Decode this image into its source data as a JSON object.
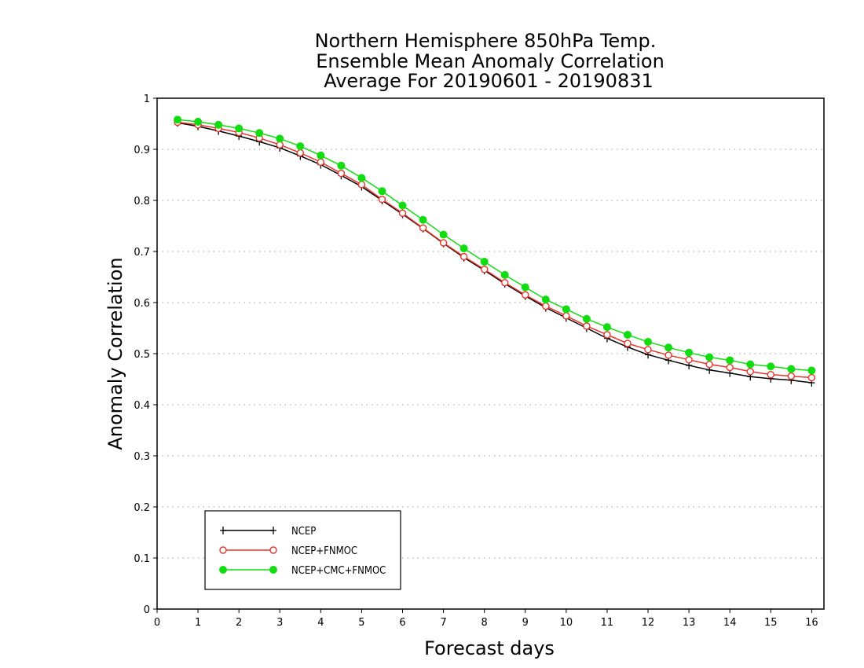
{
  "chart_data": {
    "type": "line",
    "title": [
      "Northern Hemisphere 850hPa Temp.",
      "Ensemble Mean Anomaly Correlation",
      "Average For 20190601 - 20190831"
    ],
    "xlabel": "Forecast days",
    "ylabel": "Anomaly Correlation",
    "xlim": [
      0,
      16.3
    ],
    "ylim": [
      0,
      1
    ],
    "xticks": [
      "0",
      "1",
      "2",
      "3",
      "4",
      "5",
      "6",
      "7",
      "8",
      "9",
      "10",
      "11",
      "12",
      "13",
      "14",
      "15",
      "16"
    ],
    "yticks": [
      "0",
      "0.1",
      "0.2",
      "0.3",
      "0.4",
      "0.5",
      "0.6",
      "0.7",
      "0.8",
      "0.9",
      "1"
    ],
    "grid": true,
    "legend_position": "bottom-left",
    "x": [
      0.5,
      1,
      1.5,
      2,
      2.5,
      3,
      3.5,
      4,
      4.5,
      5,
      5.5,
      6,
      6.5,
      7,
      7.5,
      8,
      8.5,
      9,
      9.5,
      10,
      10.5,
      11,
      11.5,
      12,
      12.5,
      13,
      13.5,
      14,
      14.5,
      15,
      15.5,
      16
    ],
    "series": [
      {
        "name": "NCEP",
        "color": "#000000",
        "marker": "plus",
        "values": [
          0.952,
          0.945,
          0.936,
          0.926,
          0.915,
          0.903,
          0.887,
          0.87,
          0.849,
          0.827,
          0.8,
          0.773,
          0.745,
          0.716,
          0.688,
          0.663,
          0.637,
          0.613,
          0.59,
          0.57,
          0.55,
          0.53,
          0.513,
          0.498,
          0.487,
          0.477,
          0.468,
          0.462,
          0.455,
          0.451,
          0.448,
          0.443
        ]
      },
      {
        "name": "NCEP+FNMOC",
        "color": "#e8342a",
        "marker": "open-circle",
        "values": [
          0.953,
          0.948,
          0.941,
          0.933,
          0.922,
          0.909,
          0.893,
          0.875,
          0.853,
          0.831,
          0.802,
          0.775,
          0.746,
          0.717,
          0.69,
          0.665,
          0.639,
          0.615,
          0.593,
          0.574,
          0.554,
          0.537,
          0.52,
          0.508,
          0.497,
          0.488,
          0.479,
          0.473,
          0.465,
          0.459,
          0.456,
          0.453
        ]
      },
      {
        "name": "NCEP+CMC+FNMOC",
        "color": "#11dd11",
        "marker": "filled-circle",
        "values": [
          0.958,
          0.954,
          0.948,
          0.941,
          0.932,
          0.921,
          0.906,
          0.888,
          0.868,
          0.844,
          0.818,
          0.79,
          0.762,
          0.733,
          0.706,
          0.68,
          0.654,
          0.63,
          0.606,
          0.587,
          0.568,
          0.552,
          0.537,
          0.523,
          0.512,
          0.502,
          0.493,
          0.487,
          0.479,
          0.475,
          0.47,
          0.467
        ]
      }
    ]
  }
}
